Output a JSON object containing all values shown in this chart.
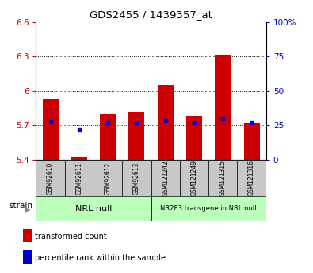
{
  "title": "GDS2455 / 1439357_at",
  "samples": [
    "GSM92610",
    "GSM92611",
    "GSM92612",
    "GSM92613",
    "GSM121242",
    "GSM121249",
    "GSM121315",
    "GSM121316"
  ],
  "red_values": [
    5.93,
    5.42,
    5.8,
    5.82,
    6.05,
    5.78,
    6.31,
    5.72
  ],
  "blue_values": [
    5.73,
    5.66,
    5.72,
    5.72,
    5.74,
    5.72,
    5.76,
    5.72
  ],
  "baseline": 5.4,
  "ylim_left": [
    5.4,
    6.6
  ],
  "ylim_right": [
    0,
    100
  ],
  "yticks_left": [
    5.4,
    5.7,
    6.0,
    6.3,
    6.6
  ],
  "ytick_labels_left": [
    "5.4",
    "5.7",
    "6",
    "6.3",
    "6.6"
  ],
  "yticks_right": [
    0,
    25,
    50,
    75,
    100
  ],
  "ytick_labels_right": [
    "0",
    "25",
    "50",
    "75",
    "100%"
  ],
  "hlines": [
    5.7,
    6.0,
    6.3
  ],
  "group1_label": "NRL null",
  "group2_label": "NR2E3 transgene in NRL null",
  "bar_color": "#cc0000",
  "dot_color": "#0000cc",
  "group_bg_color": "#bbffbb",
  "sample_bg_color": "#c8c8c8",
  "bar_width": 0.55,
  "legend_red": "transformed count",
  "legend_blue": "percentile rank within the sample"
}
